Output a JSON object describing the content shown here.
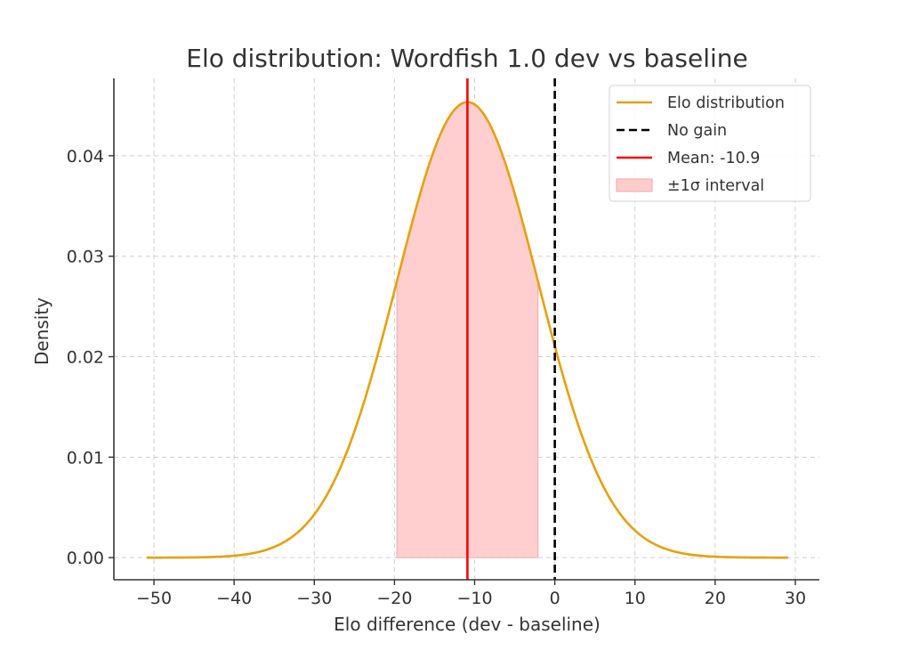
{
  "chart_data": {
    "type": "line",
    "title": "Elo distribution: Wordfish 1.0 dev vs baseline",
    "xlabel": "Elo difference (dev - baseline)",
    "ylabel": "Density",
    "xlim": [
      -55,
      33
    ],
    "ylim": [
      -0.0022,
      0.0477
    ],
    "x_ticks": [
      -50,
      -40,
      -30,
      -20,
      -10,
      0,
      10,
      20,
      30
    ],
    "x_tick_labels": [
      "−50",
      "−40",
      "−30",
      "−20",
      "−10",
      "0",
      "10",
      "20",
      "30"
    ],
    "y_ticks": [
      0.0,
      0.01,
      0.02,
      0.03,
      0.04
    ],
    "y_tick_labels": [
      "0.00",
      "0.01",
      "0.02",
      "0.03",
      "0.04"
    ],
    "grid": true,
    "legend_position": "top-right",
    "series": [
      {
        "name": "Elo distribution",
        "kind": "normal-curve",
        "mean": -10.9,
        "sigma": 8.8,
        "x_range": [
          -50.9,
          29.1
        ],
        "color": "#e6a00a"
      },
      {
        "name": "No gain",
        "kind": "vertical-line",
        "x": 0,
        "color": "#000000",
        "dashed": true
      },
      {
        "name": "Mean: -10.9",
        "kind": "vertical-line",
        "x": -10.9,
        "color": "#ff0000",
        "dashed": false
      },
      {
        "name": "±1σ interval",
        "kind": "shaded-region",
        "x_range": [
          -19.7,
          -2.1
        ],
        "color": "#ffcccc"
      }
    ]
  }
}
